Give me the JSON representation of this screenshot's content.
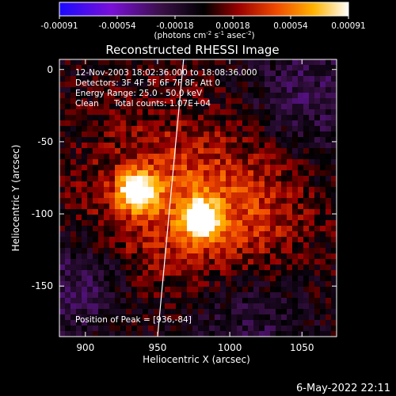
{
  "colorbar": {
    "ticks": [
      "-0.00091",
      "-0.00054",
      "-0.00018",
      "0.00018",
      "0.00054",
      "0.00091"
    ],
    "unit_label": "(photons cm",
    "unit_sup1": "-2",
    "unit_mid": " s",
    "unit_sup2": "-1",
    "unit_mid2": " asec",
    "unit_sup3": "-2",
    "unit_end": ")"
  },
  "annotations": {
    "line1": "12-Nov-2003 18:02:36.000 to 18:08:36.000",
    "line2": "Detectors: 3F 4F 5F 6F 7F 8F, Att 0",
    "line3": "Energy Range: 25.0 - 50.0 keV",
    "line4a": "Clean",
    "line4b": "Total counts: 1.07E+04",
    "peak": "Position of Peak = [936,-84]"
  },
  "footer": {
    "timestamp": "6-May-2022 22:11"
  },
  "chart_data": {
    "type": "heatmap",
    "title": "Reconstructed RHESSI Image",
    "xlabel": "Heliocentric X (arcsec)",
    "ylabel": "Heliocentric Y (arcsec)",
    "xlim": [
      882,
      1074
    ],
    "ylim": [
      -185,
      7
    ],
    "xticks": [
      900,
      950,
      1000,
      1050
    ],
    "yticks": [
      0,
      -50,
      -100,
      -150
    ],
    "color_range": [
      -0.00091,
      0.00091
    ],
    "colormap": "blue-purple-black-red-orange-yellow-white",
    "sources": [
      {
        "x": 936,
        "y": -84,
        "level": 1.0
      },
      {
        "x": 980,
        "y": -104,
        "level": 0.92
      }
    ],
    "limb_line": [
      [
        968,
        7
      ],
      [
        950,
        -185
      ]
    ],
    "peak": [
      936,
      -84
    ]
  }
}
